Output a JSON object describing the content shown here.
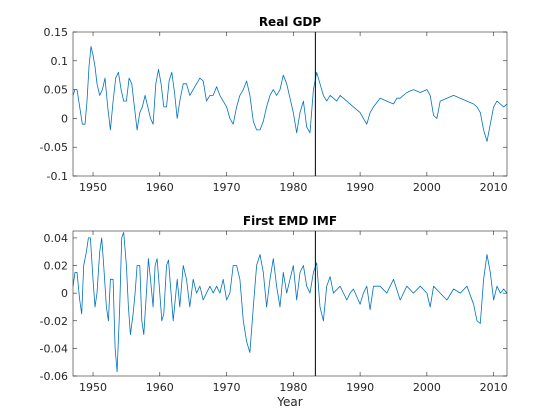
{
  "chart_data": [
    {
      "type": "line",
      "title": "Real GDP",
      "xlabel": "",
      "ylabel": "",
      "xlim": [
        1947,
        2012
      ],
      "ylim": [
        -0.1,
        0.15
      ],
      "xticks": [
        1950,
        1960,
        1970,
        1980,
        1990,
        2000,
        2010
      ],
      "yticks": [
        -0.1,
        -0.05,
        0,
        0.05,
        0.1,
        0.15
      ],
      "ytick_labels": [
        "-0.1",
        "-0.05",
        "0",
        "0.05",
        "0.1",
        "0.15"
      ],
      "vertical_line_x": 1983.3,
      "color": "#0072BD",
      "series": [
        {
          "x": [
            1947.0,
            1947.3,
            1947.6,
            1948.0,
            1948.4,
            1948.8,
            1949.1,
            1949.4,
            1949.7,
            1950.0,
            1950.3,
            1950.6,
            1951.0,
            1951.4,
            1951.8,
            1952.2,
            1952.6,
            1953.0,
            1953.4,
            1953.8,
            1954.2,
            1954.6,
            1955.0,
            1955.4,
            1955.8,
            1956.2,
            1956.6,
            1957.0,
            1957.4,
            1957.8,
            1958.2,
            1958.6,
            1959.0,
            1959.4,
            1959.8,
            1960.2,
            1960.6,
            1961.0,
            1961.4,
            1961.8,
            1962.2,
            1962.6,
            1963.0,
            1963.5,
            1964.0,
            1964.5,
            1965.0,
            1965.5,
            1966.0,
            1966.5,
            1967.0,
            1967.5,
            1968.0,
            1968.5,
            1969.0,
            1969.5,
            1970.0,
            1970.5,
            1971.0,
            1971.5,
            1972.0,
            1972.5,
            1973.0,
            1973.5,
            1974.0,
            1974.5,
            1975.0,
            1975.5,
            1976.0,
            1976.5,
            1977.0,
            1977.5,
            1978.0,
            1978.5,
            1979.0,
            1979.5,
            1980.0,
            1980.5,
            1981.0,
            1981.5,
            1982.0,
            1982.5,
            1983.0,
            1983.5,
            1984.0,
            1984.5,
            1985.0,
            1985.5,
            1986.0,
            1986.5,
            1987.0,
            1988.0,
            1989.0,
            1990.0,
            1990.5,
            1991.0,
            1991.5,
            1992.0,
            1993.0,
            1994.0,
            1995.0,
            1995.5,
            1996.0,
            1997.0,
            1998.0,
            1999.0,
            2000.0,
            2000.5,
            2001.0,
            2001.5,
            2002.0,
            2003.0,
            2004.0,
            2005.0,
            2006.0,
            2007.0,
            2007.5,
            2008.0,
            2008.5,
            2009.0,
            2009.5,
            2010.0,
            2010.5,
            2011.0,
            2011.5,
            2012.0
          ],
          "y": [
            0.04,
            0.05,
            0.05,
            0.02,
            -0.01,
            -0.01,
            0.03,
            0.09,
            0.125,
            0.11,
            0.09,
            0.06,
            0.04,
            0.05,
            0.07,
            0.02,
            -0.02,
            0.03,
            0.07,
            0.08,
            0.05,
            0.03,
            0.03,
            0.07,
            0.06,
            0.02,
            -0.02,
            0.01,
            0.02,
            0.04,
            0.02,
            0.0,
            -0.01,
            0.06,
            0.085,
            0.06,
            0.02,
            0.02,
            0.065,
            0.08,
            0.045,
            0.0,
            0.03,
            0.06,
            0.06,
            0.04,
            0.05,
            0.06,
            0.07,
            0.065,
            0.03,
            0.04,
            0.04,
            0.055,
            0.04,
            0.03,
            0.02,
            0.0,
            -0.01,
            0.02,
            0.04,
            0.05,
            0.065,
            0.04,
            -0.005,
            -0.02,
            -0.02,
            -0.005,
            0.02,
            0.04,
            0.05,
            0.04,
            0.05,
            0.075,
            0.06,
            0.035,
            0.01,
            -0.025,
            0.01,
            0.03,
            -0.015,
            -0.025,
            0.05,
            0.08,
            0.06,
            0.04,
            0.03,
            0.04,
            0.035,
            0.03,
            0.04,
            0.03,
            0.02,
            0.01,
            0.0,
            -0.01,
            0.01,
            0.02,
            0.035,
            0.03,
            0.025,
            0.035,
            0.035,
            0.045,
            0.05,
            0.045,
            0.05,
            0.04,
            0.005,
            0.0,
            0.03,
            0.035,
            0.04,
            0.035,
            0.03,
            0.025,
            0.02,
            0.01,
            -0.02,
            -0.04,
            -0.01,
            0.02,
            0.03,
            0.025,
            0.02,
            0.025
          ]
        }
      ]
    },
    {
      "type": "line",
      "title": "First EMD IMF",
      "xlabel": "Year",
      "ylabel": "",
      "xlim": [
        1947,
        2012
      ],
      "ylim": [
        -0.06,
        0.045
      ],
      "xticks": [
        1950,
        1960,
        1970,
        1980,
        1990,
        2000,
        2010
      ],
      "yticks": [
        -0.06,
        -0.04,
        -0.02,
        0,
        0.02,
        0.04
      ],
      "ytick_labels": [
        "-0.06",
        "-0.04",
        "-0.02",
        "0",
        "0.02",
        "0.04"
      ],
      "vertical_line_x": 1983.3,
      "color": "#0072BD",
      "series": [
        {
          "x": [
            1947.0,
            1947.3,
            1947.6,
            1948.0,
            1948.3,
            1948.6,
            1949.0,
            1949.3,
            1949.6,
            1950.0,
            1950.3,
            1950.6,
            1951.0,
            1951.3,
            1951.6,
            1952.0,
            1952.3,
            1952.6,
            1953.0,
            1953.3,
            1953.6,
            1954.0,
            1954.3,
            1954.6,
            1955.0,
            1955.3,
            1955.6,
            1956.0,
            1956.3,
            1956.6,
            1957.0,
            1957.3,
            1957.6,
            1958.0,
            1958.3,
            1958.6,
            1959.0,
            1959.3,
            1959.6,
            1960.0,
            1960.3,
            1960.6,
            1961.0,
            1961.3,
            1961.6,
            1962.0,
            1962.3,
            1962.6,
            1963.0,
            1963.5,
            1964.0,
            1964.5,
            1965.0,
            1965.5,
            1966.0,
            1966.5,
            1967.0,
            1967.5,
            1968.0,
            1968.5,
            1969.0,
            1969.5,
            1970.0,
            1970.5,
            1971.0,
            1971.5,
            1972.0,
            1972.5,
            1973.0,
            1973.5,
            1974.0,
            1974.5,
            1975.0,
            1975.5,
            1976.0,
            1976.5,
            1977.0,
            1977.5,
            1978.0,
            1978.5,
            1979.0,
            1979.5,
            1980.0,
            1980.5,
            1981.0,
            1981.5,
            1982.0,
            1982.5,
            1983.0,
            1983.5,
            1984.0,
            1984.5,
            1985.0,
            1985.5,
            1986.0,
            1987.0,
            1988.0,
            1988.5,
            1989.0,
            1990.0,
            1990.5,
            1991.0,
            1991.5,
            1992.0,
            1993.0,
            1994.0,
            1995.0,
            1996.0,
            1997.0,
            1998.0,
            1999.0,
            2000.0,
            2000.5,
            2001.0,
            2002.0,
            2003.0,
            2004.0,
            2005.0,
            2006.0,
            2007.0,
            2007.5,
            2008.0,
            2008.5,
            2009.0,
            2009.5,
            2010.0,
            2010.5,
            2011.0,
            2011.5,
            2012.0
          ],
          "y": [
            0.005,
            0.015,
            0.015,
            -0.005,
            -0.015,
            0.02,
            0.03,
            0.04,
            0.04,
            0.01,
            -0.01,
            0.0,
            0.03,
            0.04,
            0.02,
            -0.01,
            -0.02,
            0.01,
            0.01,
            -0.04,
            -0.057,
            -0.01,
            0.04,
            0.044,
            0.02,
            -0.01,
            -0.03,
            -0.015,
            0.0,
            0.02,
            0.02,
            -0.02,
            -0.03,
            0.0,
            0.025,
            0.01,
            -0.01,
            0.02,
            0.025,
            0.0,
            -0.02,
            -0.015,
            0.02,
            0.024,
            0.005,
            -0.02,
            -0.005,
            0.01,
            -0.01,
            0.02,
            0.01,
            -0.01,
            0.01,
            0.0,
            0.005,
            -0.005,
            0.0,
            0.005,
            0.0,
            0.005,
            0.0,
            0.01,
            -0.005,
            0.0,
            0.02,
            0.02,
            0.01,
            -0.02,
            -0.035,
            -0.043,
            -0.01,
            0.02,
            0.028,
            0.015,
            -0.01,
            0.01,
            0.025,
            0.005,
            -0.01,
            0.015,
            0.0,
            0.01,
            0.02,
            -0.005,
            0.015,
            0.02,
            0.005,
            0.0,
            0.015,
            0.022,
            -0.01,
            -0.02,
            0.005,
            0.012,
            0.0,
            0.005,
            -0.005,
            0.0,
            0.003,
            -0.008,
            0.0,
            0.005,
            -0.012,
            0.005,
            0.005,
            0.0,
            0.01,
            -0.005,
            0.005,
            0.0,
            0.005,
            0.0,
            -0.01,
            0.005,
            0.0,
            -0.005,
            0.003,
            0.0,
            0.005,
            -0.008,
            -0.02,
            -0.022,
            0.01,
            0.028,
            0.015,
            -0.005,
            0.005,
            0.0,
            0.003,
            0.0
          ]
        }
      ]
    }
  ]
}
